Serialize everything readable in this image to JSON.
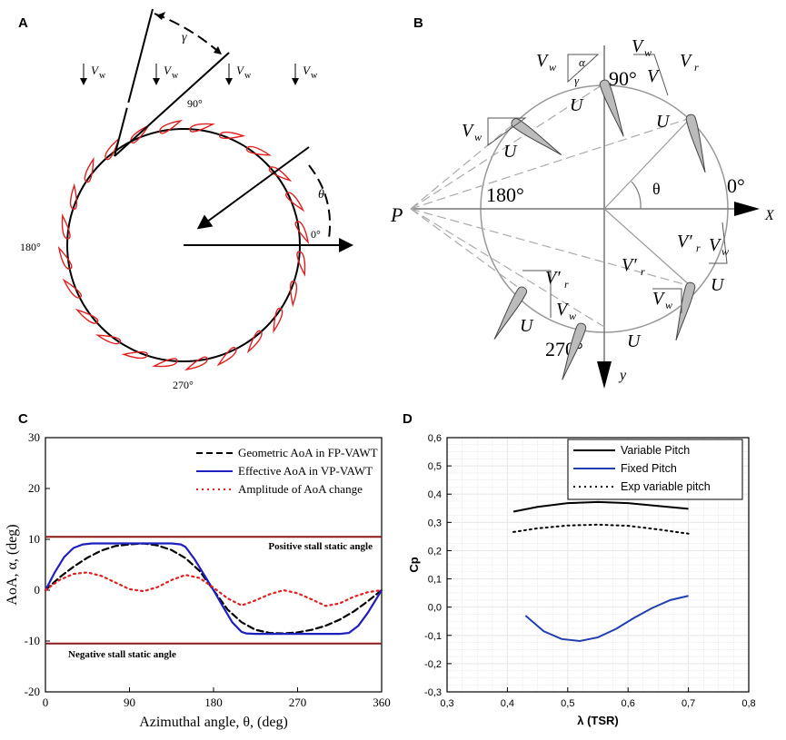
{
  "panels": {
    "a": {
      "letter": "A",
      "wind_label": "V",
      "wind_sub": "w",
      "gamma": "γ",
      "theta": "θ",
      "angle_90": "90°",
      "angle_0": "0°",
      "angle_180": "180°",
      "angle_270": "270°"
    },
    "b": {
      "letter": "B",
      "vw": "V",
      "w": "w",
      "vr": "V",
      "r": "r",
      "vr_prime": "V′",
      "u": "U",
      "alpha": "α",
      "gamma": "γ",
      "theta": "θ",
      "p": "P",
      "x": "X",
      "y": "y",
      "angle_90": "90°",
      "angle_0": "0°",
      "angle_180": "180°",
      "angle_270": "270°"
    },
    "c": {
      "letter": "C"
    },
    "d": {
      "letter": "D"
    }
  },
  "chart_data": [
    {
      "id": "C",
      "type": "line",
      "xlabel": "Azimuthal angle, θ, (deg)",
      "ylabel": "AoA, α, (deg)",
      "xlim": [
        0,
        360
      ],
      "ylim": [
        -20,
        30
      ],
      "xticks": [
        0,
        90,
        180,
        270,
        360
      ],
      "yticks": [
        -20,
        -10,
        0,
        10,
        20,
        30
      ],
      "legend_position": "top-right",
      "hlines": [
        {
          "y": 10.5,
          "label": "Positive stall static angle",
          "color": "#8b1a1a"
        },
        {
          "y": -10.5,
          "label": "Negative stall static angle",
          "color": "#8b1a1a"
        }
      ],
      "series": [
        {
          "name": "Geometric AoA in FP-VAWT",
          "color": "#000000",
          "style": "dashed",
          "x": [
            0,
            15,
            30,
            45,
            60,
            75,
            90,
            105,
            120,
            135,
            150,
            165,
            180,
            195,
            210,
            225,
            240,
            255,
            270,
            285,
            300,
            315,
            330,
            345,
            360
          ],
          "y": [
            0,
            2.5,
            4.6,
            6.4,
            7.8,
            8.7,
            9.0,
            9.2,
            8.8,
            7.9,
            6.3,
            3.8,
            0,
            -3.8,
            -6.3,
            -7.8,
            -8.4,
            -8.5,
            -8.3,
            -7.8,
            -7.0,
            -5.8,
            -4.2,
            -2.2,
            0
          ]
        },
        {
          "name": "Effective AoA in VP-VAWT",
          "color": "#1f1fbf",
          "style": "solid",
          "x": [
            0,
            10,
            20,
            30,
            40,
            50,
            60,
            75,
            90,
            105,
            120,
            135,
            145,
            150,
            160,
            170,
            180,
            190,
            200,
            210,
            215,
            225,
            240,
            255,
            270,
            285,
            300,
            315,
            325,
            335,
            345,
            355,
            360
          ],
          "y": [
            0,
            3.5,
            6.5,
            8.3,
            9.0,
            9.2,
            9.2,
            9.2,
            9.2,
            9.2,
            9.2,
            9.2,
            9.0,
            8.5,
            6.0,
            3.0,
            0,
            -3.2,
            -6.3,
            -8.2,
            -8.5,
            -8.6,
            -8.6,
            -8.6,
            -8.6,
            -8.6,
            -8.6,
            -8.6,
            -8.4,
            -7.0,
            -4.5,
            -1.5,
            0
          ]
        },
        {
          "name": "Amplitude of AoA change",
          "color": "#e02020",
          "style": "dotted",
          "x": [
            0,
            15,
            30,
            45,
            60,
            75,
            90,
            105,
            120,
            135,
            150,
            165,
            180,
            195,
            210,
            225,
            240,
            255,
            270,
            285,
            300,
            315,
            330,
            345,
            360
          ],
          "y": [
            0,
            2.0,
            3.2,
            3.5,
            2.8,
            1.5,
            0.2,
            -0.2,
            0.6,
            2.0,
            3.0,
            2.4,
            0.5,
            -1.6,
            -3.0,
            -2.0,
            -0.8,
            0,
            -0.6,
            -1.8,
            -3.1,
            -2.6,
            -1.3,
            -0.4,
            0
          ]
        }
      ]
    },
    {
      "id": "D",
      "type": "line",
      "xlabel": "λ (TSR)",
      "ylabel": "Cp",
      "xlim": [
        0.3,
        0.8
      ],
      "ylim": [
        -0.3,
        0.6
      ],
      "xticks": [
        "0,3",
        "0,4",
        "0,5",
        "0,6",
        "0,7",
        "0,8"
      ],
      "yticks": [
        "-0,3",
        "-0,2",
        "-0,1",
        "0,0",
        "0,1",
        "0,2",
        "0,3",
        "0,4",
        "0,5",
        "0,6"
      ],
      "grid": true,
      "legend_position": "top-right",
      "series": [
        {
          "name": "Variable Pitch",
          "color": "#000000",
          "style": "solid",
          "x": [
            0.41,
            0.45,
            0.5,
            0.55,
            0.6,
            0.65,
            0.7
          ],
          "y": [
            0.338,
            0.355,
            0.368,
            0.372,
            0.368,
            0.358,
            0.348
          ]
        },
        {
          "name": "Fixed Pitch",
          "color": "#2040b0",
          "style": "solid",
          "x": [
            0.43,
            0.46,
            0.49,
            0.52,
            0.55,
            0.58,
            0.61,
            0.64,
            0.67,
            0.7
          ],
          "y": [
            -0.03,
            -0.085,
            -0.113,
            -0.12,
            -0.107,
            -0.077,
            -0.038,
            -0.003,
            0.025,
            0.04
          ]
        },
        {
          "name": "Exp variable pitch",
          "color": "#000000",
          "style": "dotted",
          "x": [
            0.41,
            0.45,
            0.5,
            0.55,
            0.6,
            0.65,
            0.7
          ],
          "y": [
            0.266,
            0.279,
            0.289,
            0.292,
            0.288,
            0.275,
            0.26
          ]
        }
      ]
    }
  ]
}
